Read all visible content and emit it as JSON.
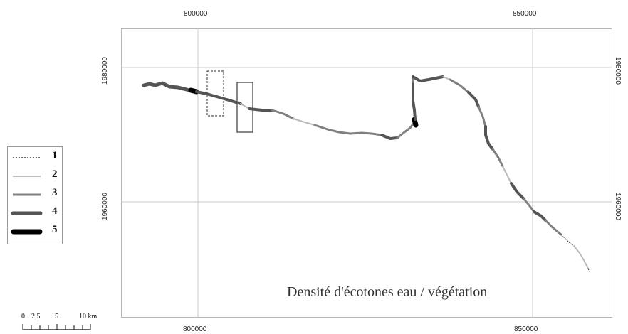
{
  "coordinates": {
    "x_top": [
      "800000",
      "850000"
    ],
    "x_bottom": [
      "800000",
      "850000"
    ],
    "y_left": [
      "1980000",
      "1960000"
    ],
    "y_right": [
      "1980000",
      "1960000"
    ]
  },
  "legend": {
    "items": [
      {
        "label": "1",
        "style": "dotted",
        "color": "#333333"
      },
      {
        "label": "2",
        "style": "thin",
        "color": "#bdbdbd"
      },
      {
        "label": "3",
        "style": "medium",
        "color": "#808080"
      },
      {
        "label": "4",
        "style": "thick",
        "color": "#555555"
      },
      {
        "label": "5",
        "style": "heavy",
        "color": "#000000"
      }
    ]
  },
  "map": {
    "title": "Densité d'écotones  eau / végétation"
  },
  "scale": {
    "labels": [
      "0",
      "2,5",
      "5",
      "10 km"
    ]
  }
}
